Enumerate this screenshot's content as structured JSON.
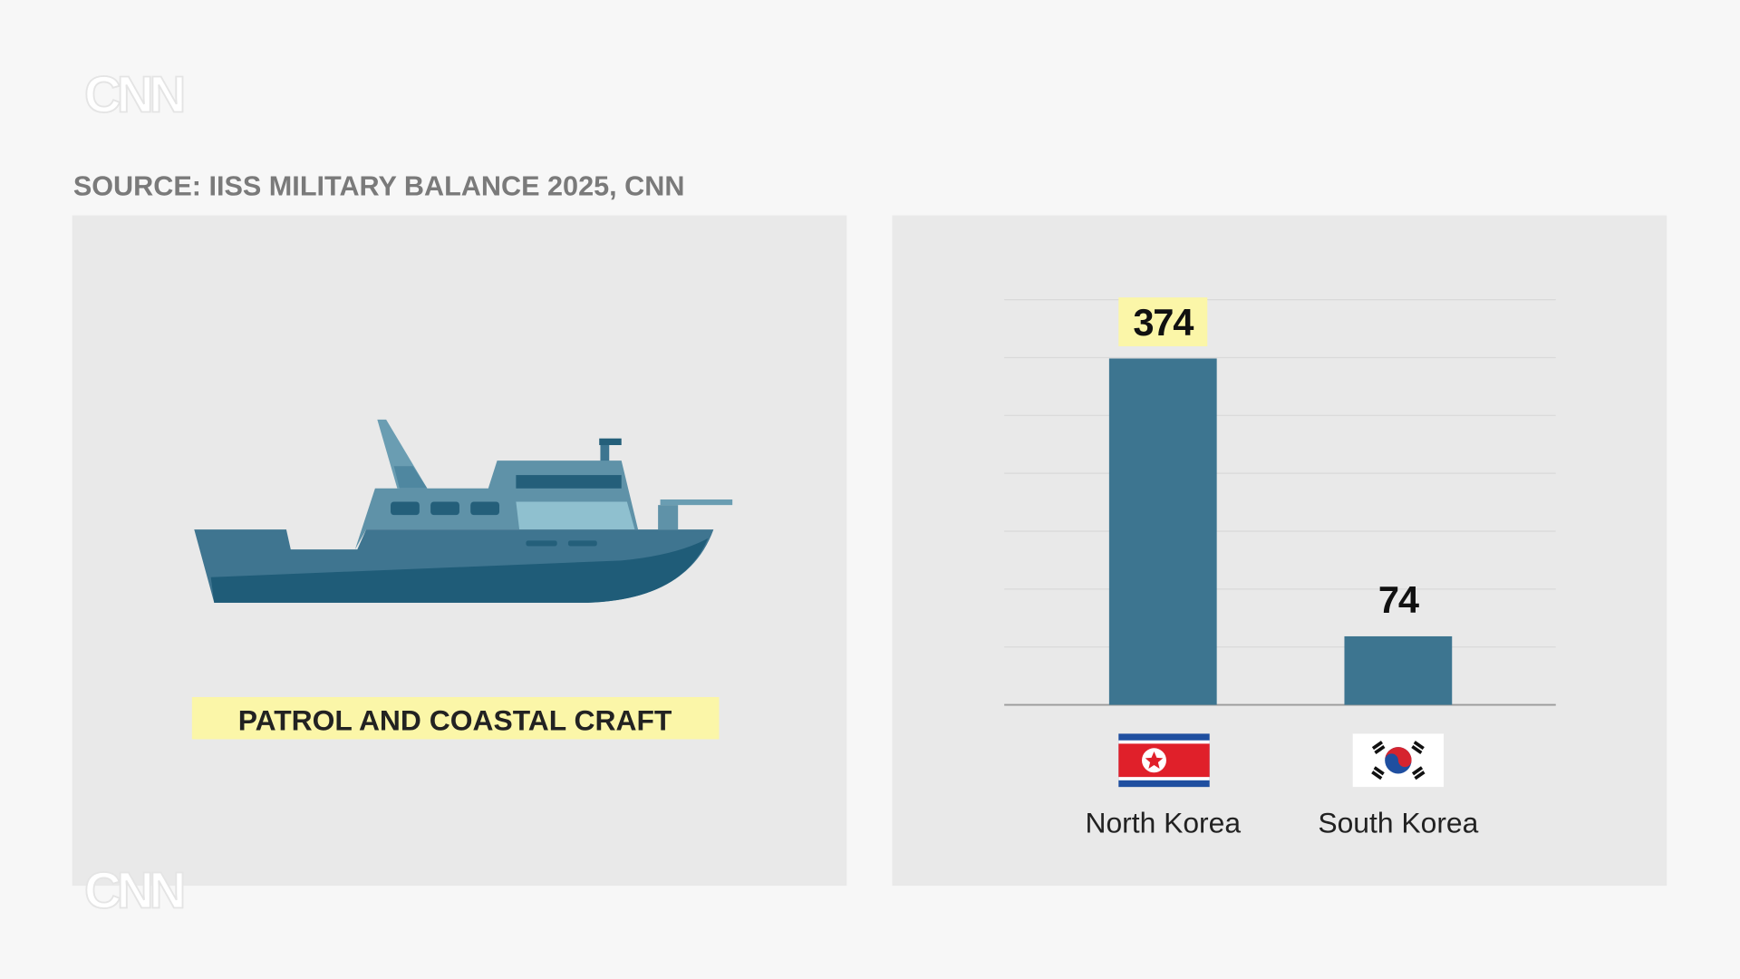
{
  "logo": "CNN",
  "source": "SOURCE: IISS MILITARY BALANCE 2025, CNN",
  "panel_label": "PATROL AND COASTAL CRAFT",
  "chart_data": {
    "type": "bar",
    "categories": [
      "North Korea",
      "South Korea"
    ],
    "values": [
      374,
      74
    ],
    "color": "#3d7590",
    "ylim": [
      0,
      437.5
    ],
    "yticks": [
      0,
      62.5,
      125,
      187.5,
      250,
      312.5,
      375,
      437.5
    ],
    "grid": true
  }
}
